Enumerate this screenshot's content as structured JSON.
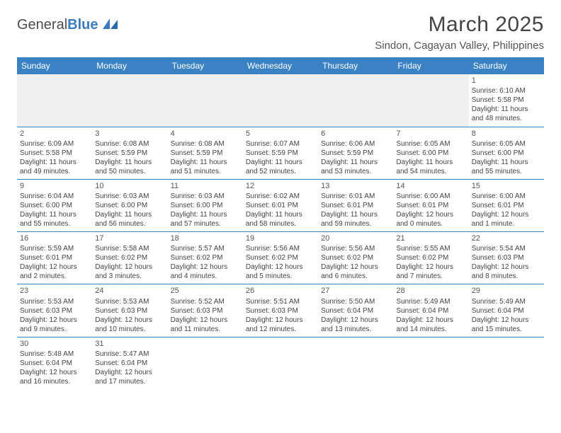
{
  "logo": {
    "main": "General",
    "accent": "Blue"
  },
  "header": {
    "month_title": "March 2025",
    "location": "Sindon, Cagayan Valley, Philippines"
  },
  "calendar": {
    "type": "table",
    "header_bg": "#3b82c4",
    "header_fg": "#ffffff",
    "row_border": "#3b82c4",
    "blank_bg": "#f0f0f0",
    "text_color": "#444444",
    "day_headers": [
      "Sunday",
      "Monday",
      "Tuesday",
      "Wednesday",
      "Thursday",
      "Friday",
      "Saturday"
    ],
    "weeks": [
      [
        null,
        null,
        null,
        null,
        null,
        null,
        {
          "d": "1",
          "sunrise": "Sunrise: 6:10 AM",
          "sunset": "Sunset: 5:58 PM",
          "daylight": "Daylight: 11 hours and 48 minutes."
        }
      ],
      [
        {
          "d": "2",
          "sunrise": "Sunrise: 6:09 AM",
          "sunset": "Sunset: 5:58 PM",
          "daylight": "Daylight: 11 hours and 49 minutes."
        },
        {
          "d": "3",
          "sunrise": "Sunrise: 6:08 AM",
          "sunset": "Sunset: 5:59 PM",
          "daylight": "Daylight: 11 hours and 50 minutes."
        },
        {
          "d": "4",
          "sunrise": "Sunrise: 6:08 AM",
          "sunset": "Sunset: 5:59 PM",
          "daylight": "Daylight: 11 hours and 51 minutes."
        },
        {
          "d": "5",
          "sunrise": "Sunrise: 6:07 AM",
          "sunset": "Sunset: 5:59 PM",
          "daylight": "Daylight: 11 hours and 52 minutes."
        },
        {
          "d": "6",
          "sunrise": "Sunrise: 6:06 AM",
          "sunset": "Sunset: 5:59 PM",
          "daylight": "Daylight: 11 hours and 53 minutes."
        },
        {
          "d": "7",
          "sunrise": "Sunrise: 6:05 AM",
          "sunset": "Sunset: 6:00 PM",
          "daylight": "Daylight: 11 hours and 54 minutes."
        },
        {
          "d": "8",
          "sunrise": "Sunrise: 6:05 AM",
          "sunset": "Sunset: 6:00 PM",
          "daylight": "Daylight: 11 hours and 55 minutes."
        }
      ],
      [
        {
          "d": "9",
          "sunrise": "Sunrise: 6:04 AM",
          "sunset": "Sunset: 6:00 PM",
          "daylight": "Daylight: 11 hours and 55 minutes."
        },
        {
          "d": "10",
          "sunrise": "Sunrise: 6:03 AM",
          "sunset": "Sunset: 6:00 PM",
          "daylight": "Daylight: 11 hours and 56 minutes."
        },
        {
          "d": "11",
          "sunrise": "Sunrise: 6:03 AM",
          "sunset": "Sunset: 6:00 PM",
          "daylight": "Daylight: 11 hours and 57 minutes."
        },
        {
          "d": "12",
          "sunrise": "Sunrise: 6:02 AM",
          "sunset": "Sunset: 6:01 PM",
          "daylight": "Daylight: 11 hours and 58 minutes."
        },
        {
          "d": "13",
          "sunrise": "Sunrise: 6:01 AM",
          "sunset": "Sunset: 6:01 PM",
          "daylight": "Daylight: 11 hours and 59 minutes."
        },
        {
          "d": "14",
          "sunrise": "Sunrise: 6:00 AM",
          "sunset": "Sunset: 6:01 PM",
          "daylight": "Daylight: 12 hours and 0 minutes."
        },
        {
          "d": "15",
          "sunrise": "Sunrise: 6:00 AM",
          "sunset": "Sunset: 6:01 PM",
          "daylight": "Daylight: 12 hours and 1 minute."
        }
      ],
      [
        {
          "d": "16",
          "sunrise": "Sunrise: 5:59 AM",
          "sunset": "Sunset: 6:01 PM",
          "daylight": "Daylight: 12 hours and 2 minutes."
        },
        {
          "d": "17",
          "sunrise": "Sunrise: 5:58 AM",
          "sunset": "Sunset: 6:02 PM",
          "daylight": "Daylight: 12 hours and 3 minutes."
        },
        {
          "d": "18",
          "sunrise": "Sunrise: 5:57 AM",
          "sunset": "Sunset: 6:02 PM",
          "daylight": "Daylight: 12 hours and 4 minutes."
        },
        {
          "d": "19",
          "sunrise": "Sunrise: 5:56 AM",
          "sunset": "Sunset: 6:02 PM",
          "daylight": "Daylight: 12 hours and 5 minutes."
        },
        {
          "d": "20",
          "sunrise": "Sunrise: 5:56 AM",
          "sunset": "Sunset: 6:02 PM",
          "daylight": "Daylight: 12 hours and 6 minutes."
        },
        {
          "d": "21",
          "sunrise": "Sunrise: 5:55 AM",
          "sunset": "Sunset: 6:02 PM",
          "daylight": "Daylight: 12 hours and 7 minutes."
        },
        {
          "d": "22",
          "sunrise": "Sunrise: 5:54 AM",
          "sunset": "Sunset: 6:03 PM",
          "daylight": "Daylight: 12 hours and 8 minutes."
        }
      ],
      [
        {
          "d": "23",
          "sunrise": "Sunrise: 5:53 AM",
          "sunset": "Sunset: 6:03 PM",
          "daylight": "Daylight: 12 hours and 9 minutes."
        },
        {
          "d": "24",
          "sunrise": "Sunrise: 5:53 AM",
          "sunset": "Sunset: 6:03 PM",
          "daylight": "Daylight: 12 hours and 10 minutes."
        },
        {
          "d": "25",
          "sunrise": "Sunrise: 5:52 AM",
          "sunset": "Sunset: 6:03 PM",
          "daylight": "Daylight: 12 hours and 11 minutes."
        },
        {
          "d": "26",
          "sunrise": "Sunrise: 5:51 AM",
          "sunset": "Sunset: 6:03 PM",
          "daylight": "Daylight: 12 hours and 12 minutes."
        },
        {
          "d": "27",
          "sunrise": "Sunrise: 5:50 AM",
          "sunset": "Sunset: 6:04 PM",
          "daylight": "Daylight: 12 hours and 13 minutes."
        },
        {
          "d": "28",
          "sunrise": "Sunrise: 5:49 AM",
          "sunset": "Sunset: 6:04 PM",
          "daylight": "Daylight: 12 hours and 14 minutes."
        },
        {
          "d": "29",
          "sunrise": "Sunrise: 5:49 AM",
          "sunset": "Sunset: 6:04 PM",
          "daylight": "Daylight: 12 hours and 15 minutes."
        }
      ],
      [
        {
          "d": "30",
          "sunrise": "Sunrise: 5:48 AM",
          "sunset": "Sunset: 6:04 PM",
          "daylight": "Daylight: 12 hours and 16 minutes."
        },
        {
          "d": "31",
          "sunrise": "Sunrise: 5:47 AM",
          "sunset": "Sunset: 6:04 PM",
          "daylight": "Daylight: 12 hours and 17 minutes."
        },
        null,
        null,
        null,
        null,
        null
      ]
    ]
  }
}
